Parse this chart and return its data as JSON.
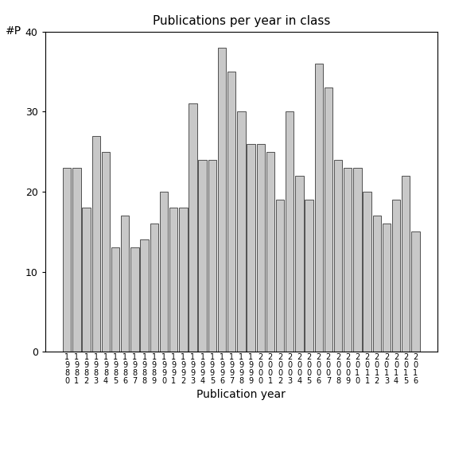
{
  "title": "Publications per year in class",
  "xlabel": "Publication year",
  "ylabel": "#P",
  "bar_color": "#c8c8c8",
  "edge_color": "#3a3a3a",
  "years": [
    1980,
    1981,
    1982,
    1983,
    1984,
    1985,
    1986,
    1987,
    1988,
    1989,
    1990,
    1991,
    1992,
    1993,
    1994,
    1995,
    1996,
    1997,
    1998,
    1999,
    2000,
    2001,
    2002,
    2003,
    2004,
    2005,
    2006,
    2007,
    2008,
    2009,
    2010,
    2011,
    2012,
    2013,
    2014,
    2015,
    2016
  ],
  "values": [
    23,
    23,
    18,
    27,
    25,
    13,
    17,
    13,
    14,
    16,
    20,
    18,
    18,
    31,
    24,
    24,
    38,
    35,
    30,
    26,
    26,
    25,
    19,
    30,
    22,
    19,
    36,
    33,
    24,
    23,
    23,
    20,
    17,
    16,
    19,
    22,
    15
  ],
  "ylim": [
    0,
    40
  ],
  "yticks": [
    0,
    10,
    20,
    30,
    40
  ],
  "figsize": [
    5.67,
    5.67
  ],
  "dpi": 100,
  "title_fontsize": 11,
  "axis_label_fontsize": 10,
  "tick_fontsize": 9,
  "xtick_fontsize": 7
}
